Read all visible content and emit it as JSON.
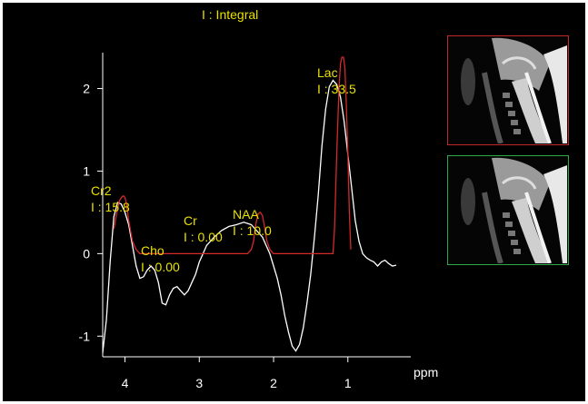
{
  "header": {
    "title": "I : Integral"
  },
  "chart_data": {
    "type": "line",
    "title": "I : Integral",
    "xlabel": "ppm",
    "ylabel": "",
    "xlim": [
      4.3,
      0.3
    ],
    "ylim": [
      -1.25,
      2.6
    ],
    "x_direction": "reversed",
    "xticks": [
      "4",
      "3",
      "2",
      "1"
    ],
    "yticks": [
      "2",
      "1",
      "0",
      "-1"
    ],
    "grid": false,
    "series": [
      {
        "color": "#ffffff",
        "x": [
          4.3,
          4.25,
          4.2,
          4.15,
          4.1,
          4.05,
          4.0,
          3.95,
          3.9,
          3.85,
          3.8,
          3.75,
          3.7,
          3.65,
          3.6,
          3.55,
          3.5,
          3.45,
          3.4,
          3.35,
          3.3,
          3.25,
          3.2,
          3.15,
          3.1,
          3.05,
          3.0,
          2.95,
          2.9,
          2.8,
          2.7,
          2.6,
          2.5,
          2.4,
          2.3,
          2.25,
          2.2,
          2.15,
          2.1,
          2.05,
          2.0,
          1.95,
          1.9,
          1.85,
          1.8,
          1.75,
          1.7,
          1.65,
          1.6,
          1.55,
          1.5,
          1.45,
          1.4,
          1.35,
          1.3,
          1.25,
          1.2,
          1.15,
          1.1,
          1.05,
          1.0,
          0.95,
          0.9,
          0.85,
          0.8,
          0.75,
          0.7,
          0.65,
          0.6,
          0.55,
          0.5,
          0.45,
          0.4,
          0.35
        ],
        "y": [
          -1.2,
          -0.8,
          -0.1,
          0.45,
          0.62,
          0.6,
          0.5,
          0.35,
          0.1,
          -0.15,
          -0.3,
          -0.28,
          -0.2,
          -0.15,
          -0.2,
          -0.35,
          -0.6,
          -0.62,
          -0.5,
          -0.42,
          -0.4,
          -0.45,
          -0.5,
          -0.45,
          -0.35,
          -0.25,
          -0.1,
          0.0,
          0.1,
          0.2,
          0.28,
          0.33,
          0.35,
          0.38,
          0.35,
          0.3,
          0.25,
          0.2,
          0.1,
          0.0,
          -0.15,
          -0.3,
          -0.5,
          -0.75,
          -0.95,
          -1.12,
          -1.18,
          -1.1,
          -0.9,
          -0.6,
          -0.25,
          0.2,
          0.7,
          1.3,
          1.75,
          2.02,
          2.1,
          2.05,
          1.9,
          1.6,
          1.2,
          0.8,
          0.4,
          0.15,
          0.0,
          -0.05,
          -0.08,
          -0.1,
          -0.15,
          -0.1,
          -0.08,
          -0.12,
          -0.15,
          -0.14
        ]
      },
      {
        "color": "#d42a2a",
        "x": [
          4.15,
          4.1,
          4.07,
          4.04,
          4.02,
          4.0,
          3.98,
          3.95,
          3.9,
          3.85,
          3.8,
          3.5,
          3.0,
          2.5,
          2.35,
          2.3,
          2.27,
          2.24,
          2.21,
          2.18,
          2.15,
          2.12,
          2.09,
          2.05,
          2.0,
          1.5,
          1.2,
          1.18,
          1.15,
          1.12,
          1.1,
          1.08,
          1.06,
          1.04,
          1.02,
          1.0,
          0.98,
          0.96
        ],
        "y": [
          0.3,
          0.55,
          0.65,
          0.69,
          0.7,
          0.68,
          0.6,
          0.4,
          0.15,
          0.05,
          0.0,
          0.0,
          0.0,
          0.0,
          0.0,
          0.05,
          0.15,
          0.35,
          0.48,
          0.5,
          0.46,
          0.32,
          0.15,
          0.05,
          0.0,
          0.0,
          0.0,
          0.3,
          1.2,
          2.0,
          2.3,
          2.38,
          2.38,
          2.25,
          1.8,
          1.2,
          0.5,
          0.05
        ]
      }
    ],
    "annotations": [
      {
        "line1": "Cr2",
        "line2": "I : 15.8"
      },
      {
        "line1": "Cho",
        "line2": "I : 0.00"
      },
      {
        "line1": "Cr",
        "line2": "I : 0.00"
      },
      {
        "line1": "NAA",
        "line2": "I : 10.0"
      },
      {
        "line1": "Lac",
        "line2": "I : 33.5"
      }
    ]
  },
  "thumbnails": [
    {
      "name": "sagittal-mri-thumbnail",
      "border_color": "#c0262b"
    },
    {
      "name": "sagittal-mri-thumbnail",
      "border_color": "#2fa84a"
    }
  ]
}
